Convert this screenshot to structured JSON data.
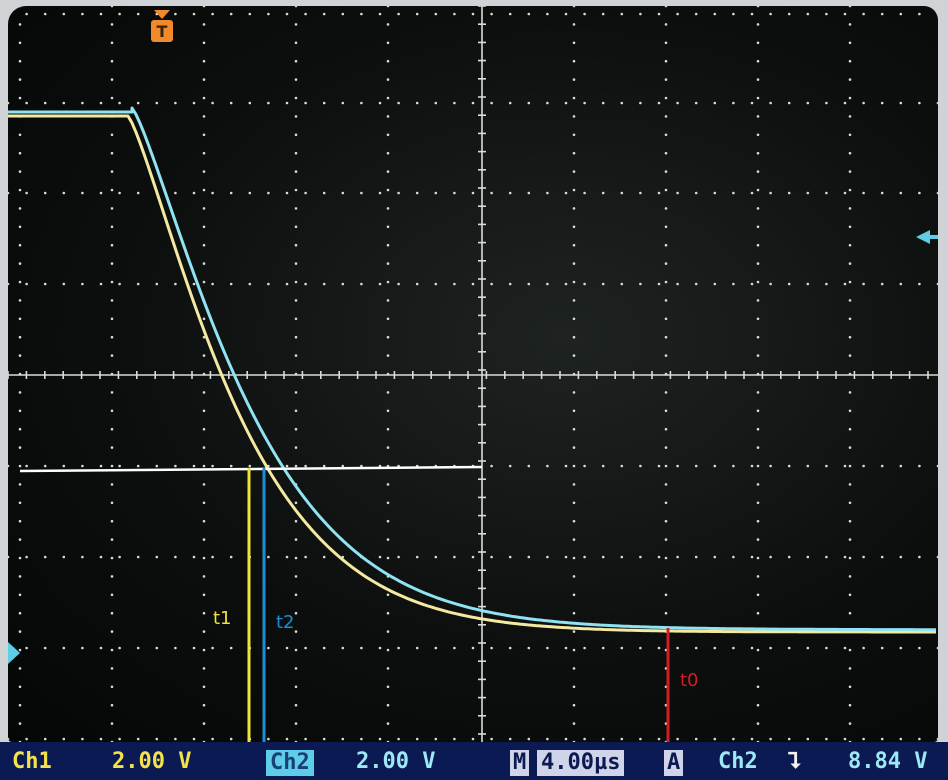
{
  "annotations": {
    "t1": "t1",
    "t2": "t2",
    "t0": "t0"
  },
  "markers": {
    "trigger_position": "T"
  },
  "status_bar": {
    "ch1_label": "Ch1",
    "ch1_scale": "2.00 V",
    "ch2_label": "Ch2",
    "ch2_scale": "2.00 V",
    "timebase_label": "M",
    "timebase_value": "4.00µs",
    "acquire_label": "A",
    "trigger_source": "Ch2",
    "trigger_slope_icon": "falling-edge-icon",
    "trigger_level": "8.84 V"
  },
  "colors": {
    "ch1_trace": "#f4e9a0",
    "ch2_trace": "#8fe3f2",
    "t1_marker": "#f2e23a",
    "t2_marker": "#1b8fd6",
    "t0_marker": "#d11e25",
    "threshold_line": "#ffffff",
    "trigger_marker": "#f08a2a",
    "status_bar_bg": "#0b1a52"
  }
}
